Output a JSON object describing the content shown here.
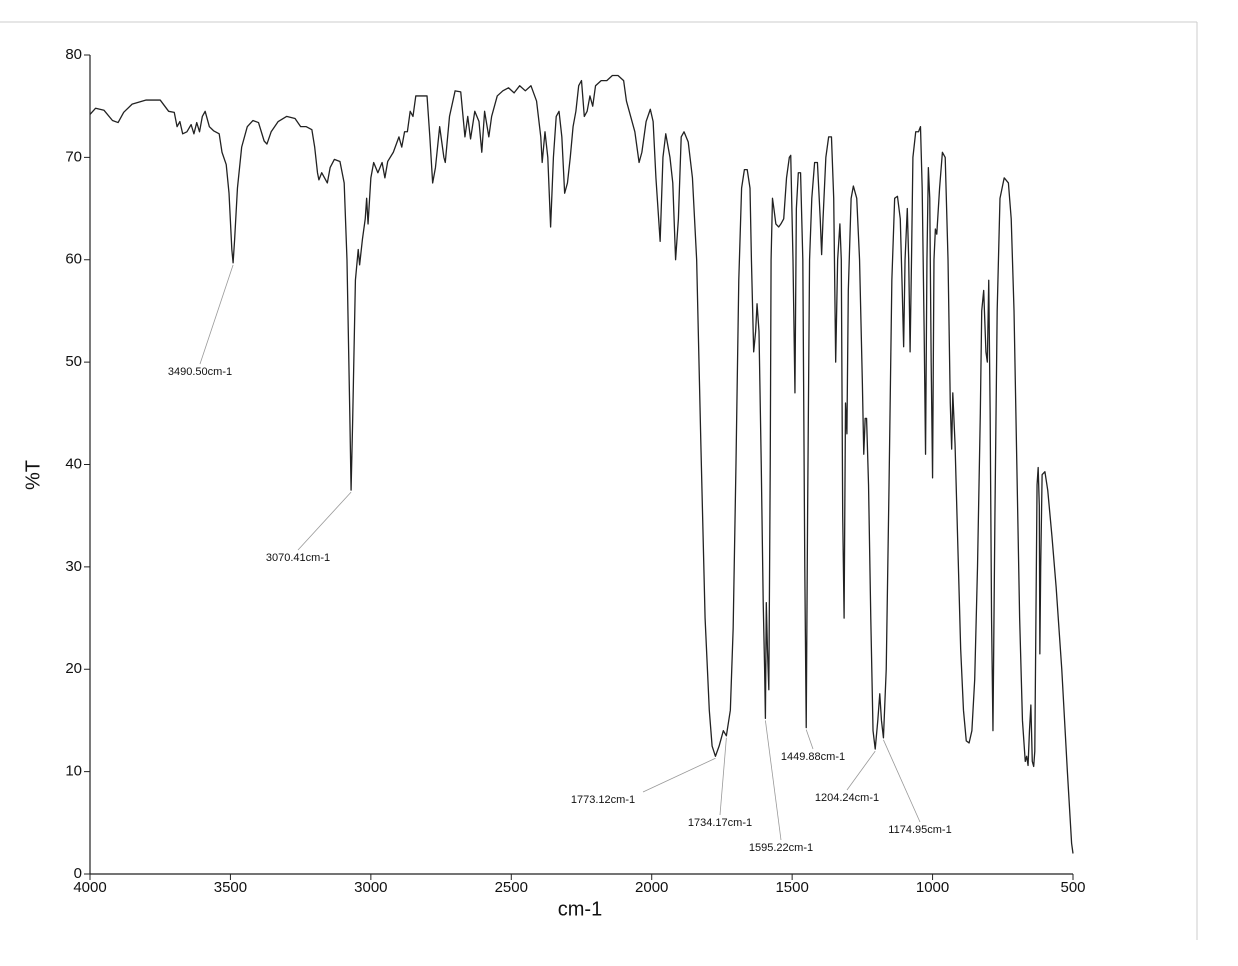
{
  "chart_data": {
    "type": "line",
    "xlabel": "cm-1",
    "ylabel": "%T",
    "xlim": [
      4000,
      500
    ],
    "ylim": [
      0,
      80
    ],
    "xticks": [
      4000,
      3500,
      3000,
      2500,
      2000,
      1500,
      1000,
      500
    ],
    "yticks": [
      0,
      10,
      20,
      30,
      40,
      50,
      60,
      70,
      80
    ],
    "color": "#222222",
    "x": [
      4000,
      3980,
      3950,
      3920,
      3900,
      3880,
      3850,
      3800,
      3750,
      3720,
      3700,
      3690,
      3680,
      3670,
      3655,
      3640,
      3630,
      3620,
      3610,
      3600,
      3590,
      3575,
      3560,
      3540,
      3530,
      3515,
      3505,
      3495,
      3490.5,
      3485,
      3475,
      3460,
      3440,
      3420,
      3400,
      3380,
      3370,
      3355,
      3330,
      3300,
      3270,
      3250,
      3230,
      3210,
      3200,
      3190,
      3185,
      3175,
      3165,
      3155,
      3145,
      3130,
      3110,
      3095,
      3085,
      3075,
      3070.41,
      3065,
      3055,
      3045,
      3040,
      3030,
      3020,
      3015,
      3010,
      3000,
      2990,
      2975,
      2960,
      2950,
      2940,
      2920,
      2900,
      2890,
      2880,
      2870,
      2860,
      2850,
      2840,
      2800,
      2790,
      2780,
      2770,
      2755,
      2740,
      2735,
      2720,
      2700,
      2680,
      2665,
      2655,
      2645,
      2630,
      2615,
      2605,
      2595,
      2580,
      2570,
      2550,
      2530,
      2510,
      2490,
      2470,
      2450,
      2430,
      2410,
      2395,
      2390,
      2380,
      2370,
      2360,
      2350,
      2340,
      2330,
      2320,
      2310,
      2300,
      2290,
      2280,
      2270,
      2260,
      2250,
      2240,
      2230,
      2220,
      2210,
      2200,
      2180,
      2160,
      2140,
      2120,
      2100,
      2090,
      2080,
      2060,
      2045,
      2035,
      2020,
      2005,
      1995,
      1985,
      1970,
      1960,
      1950,
      1935,
      1925,
      1915,
      1905,
      1895,
      1885,
      1870,
      1855,
      1840,
      1825,
      1810,
      1795,
      1785,
      1773.12,
      1760,
      1745,
      1734.17,
      1720,
      1710,
      1700,
      1690,
      1680,
      1670,
      1660,
      1650,
      1645,
      1637,
      1630,
      1625,
      1618,
      1610,
      1603,
      1598,
      1595.22,
      1592,
      1588,
      1583,
      1578,
      1575,
      1570,
      1565,
      1558,
      1548,
      1540,
      1530,
      1520,
      1510,
      1505,
      1497,
      1490,
      1485,
      1478,
      1470,
      1462,
      1455,
      1449.88,
      1445,
      1438,
      1430,
      1420,
      1410,
      1400,
      1395,
      1390,
      1380,
      1370,
      1360,
      1352,
      1345,
      1338,
      1330,
      1325,
      1320,
      1315,
      1310,
      1305,
      1300,
      1290,
      1282,
      1270,
      1260,
      1250,
      1245,
      1240,
      1235,
      1228,
      1220,
      1212,
      1204.24,
      1195,
      1188,
      1182,
      1174.95,
      1165,
      1155,
      1145,
      1135,
      1125,
      1115,
      1108,
      1103,
      1098,
      1090,
      1085,
      1080,
      1075,
      1070,
      1060,
      1050,
      1043,
      1037,
      1030,
      1025,
      1020,
      1015,
      1010,
      1005,
      1000,
      995,
      990,
      985,
      975,
      965,
      955,
      945,
      937,
      932,
      928,
      920,
      910,
      900,
      890,
      880,
      870,
      860,
      850,
      840,
      830,
      825,
      818,
      810,
      805,
      800,
      795,
      790,
      785,
      778,
      770,
      760,
      745,
      730,
      720,
      710,
      700,
      690,
      680,
      670,
      665,
      660,
      655,
      650,
      645,
      640,
      636,
      632,
      628,
      624,
      620,
      618,
      615,
      610,
      600,
      590,
      575,
      560,
      540,
      520,
      505,
      500
    ],
    "values": [
      74.2,
      74.8,
      74.6,
      73.6,
      73.4,
      74.4,
      75.2,
      75.6,
      75.6,
      74.5,
      74.4,
      73.0,
      73.5,
      72.3,
      72.5,
      73.2,
      72.3,
      73.4,
      72.5,
      74.0,
      74.5,
      73.0,
      72.6,
      72.3,
      70.5,
      69.3,
      66.5,
      61.0,
      59.7,
      62.0,
      67.0,
      71.0,
      73.0,
      73.6,
      73.4,
      71.6,
      71.3,
      72.5,
      73.5,
      74.0,
      73.8,
      73.0,
      73.0,
      72.7,
      71.0,
      68.5,
      67.8,
      68.5,
      68.0,
      67.5,
      69.0,
      69.8,
      69.6,
      67.5,
      60.0,
      45.0,
      37.5,
      44.0,
      58.0,
      61.0,
      59.5,
      62.0,
      64.0,
      66.0,
      63.5,
      68.0,
      69.5,
      68.5,
      69.5,
      68.0,
      69.6,
      70.5,
      72.0,
      71.0,
      72.5,
      72.5,
      74.5,
      74.0,
      76.0,
      76.0,
      72.0,
      67.5,
      69.0,
      73.0,
      70.0,
      69.5,
      74.0,
      76.5,
      76.4,
      72.0,
      74.0,
      71.8,
      74.5,
      73.5,
      70.5,
      74.5,
      72.0,
      74.0,
      76.0,
      76.5,
      76.8,
      76.3,
      77.0,
      76.5,
      77.0,
      75.5,
      72.0,
      69.5,
      72.5,
      70.0,
      63.2,
      70.0,
      74.0,
      74.5,
      72.0,
      66.5,
      67.5,
      70.0,
      73.0,
      74.5,
      77.0,
      77.5,
      74.0,
      74.5,
      76.0,
      75.0,
      77.0,
      77.5,
      77.5,
      78.0,
      78.0,
      77.5,
      75.5,
      74.5,
      72.5,
      69.5,
      70.5,
      73.5,
      74.7,
      73.5,
      68.0,
      61.8,
      70.0,
      72.3,
      70.0,
      67.5,
      60.0,
      64.0,
      72.0,
      72.5,
      71.5,
      68.0,
      60.0,
      42.0,
      25.0,
      16.0,
      12.5,
      11.5,
      12.5,
      14.0,
      13.5,
      16.0,
      24.0,
      40.0,
      58.0,
      67.0,
      68.8,
      68.8,
      67.0,
      60.0,
      51.0,
      53.0,
      55.7,
      53.0,
      40.0,
      26.5,
      20.0,
      15.2,
      26.5,
      22.0,
      18.0,
      40.0,
      60.0,
      66.0,
      65.0,
      63.5,
      63.2,
      63.5,
      64.0,
      68.0,
      70.0,
      70.2,
      60.0,
      47.0,
      65.0,
      68.5,
      68.5,
      60.0,
      30.0,
      14.3,
      35.0,
      60.0,
      66.0,
      69.5,
      69.5,
      64.0,
      60.5,
      64.0,
      70.0,
      72.0,
      72.0,
      66.0,
      50.0,
      60.0,
      63.5,
      60.0,
      35.0,
      25.0,
      46.0,
      43.0,
      57.0,
      66.0,
      67.2,
      66.0,
      60.0,
      48.0,
      41.0,
      44.5,
      44.5,
      38.0,
      25.0,
      14.0,
      12.2,
      15.0,
      17.6,
      15.0,
      13.3,
      20.0,
      38.0,
      58.0,
      66.0,
      66.2,
      64.0,
      57.0,
      51.5,
      60.0,
      65.0,
      60.0,
      51.0,
      60.0,
      70.0,
      72.5,
      72.5,
      73.0,
      67.0,
      53.0,
      41.0,
      60.0,
      69.0,
      66.0,
      50.0,
      38.7,
      60.0,
      63.0,
      62.5,
      67.0,
      70.5,
      70.0,
      60.0,
      46.0,
      41.5,
      47.0,
      42.0,
      32.0,
      22.0,
      16.0,
      13.0,
      12.8,
      14.0,
      19.0,
      30.0,
      45.0,
      55.0,
      57.0,
      51.0,
      50.0,
      58.0,
      45.0,
      25.0,
      14.0,
      35.0,
      55.0,
      66.0,
      68.0,
      67.5,
      64.0,
      55.0,
      40.0,
      25.0,
      15.0,
      11.0,
      11.5,
      10.6,
      14.0,
      16.5,
      11.0,
      10.5,
      12.0,
      25.0,
      38.0,
      39.7,
      36.0,
      21.5,
      30.0,
      39.0,
      39.3,
      37.5,
      33.0,
      28.0,
      20.0,
      10.0,
      3.0,
      2.0
    ],
    "annotations": [
      {
        "x": 3490.5,
        "y": 59.7,
        "label": "3490.50cm-1"
      },
      {
        "x": 3070.41,
        "y": 37.5,
        "label": "3070.41cm-1"
      },
      {
        "x": 1773.12,
        "y": 11.5,
        "label": "1773.12cm-1"
      },
      {
        "x": 1734.17,
        "y": 13.5,
        "label": "1734.17cm-1"
      },
      {
        "x": 1595.22,
        "y": 15.2,
        "label": "1595.22cm-1"
      },
      {
        "x": 1449.88,
        "y": 14.3,
        "label": "1449.88cm-1"
      },
      {
        "x": 1204.24,
        "y": 12.2,
        "label": "1204.24cm-1"
      },
      {
        "x": 1174.95,
        "y": 13.3,
        "label": "1174.95cm-1"
      }
    ]
  }
}
